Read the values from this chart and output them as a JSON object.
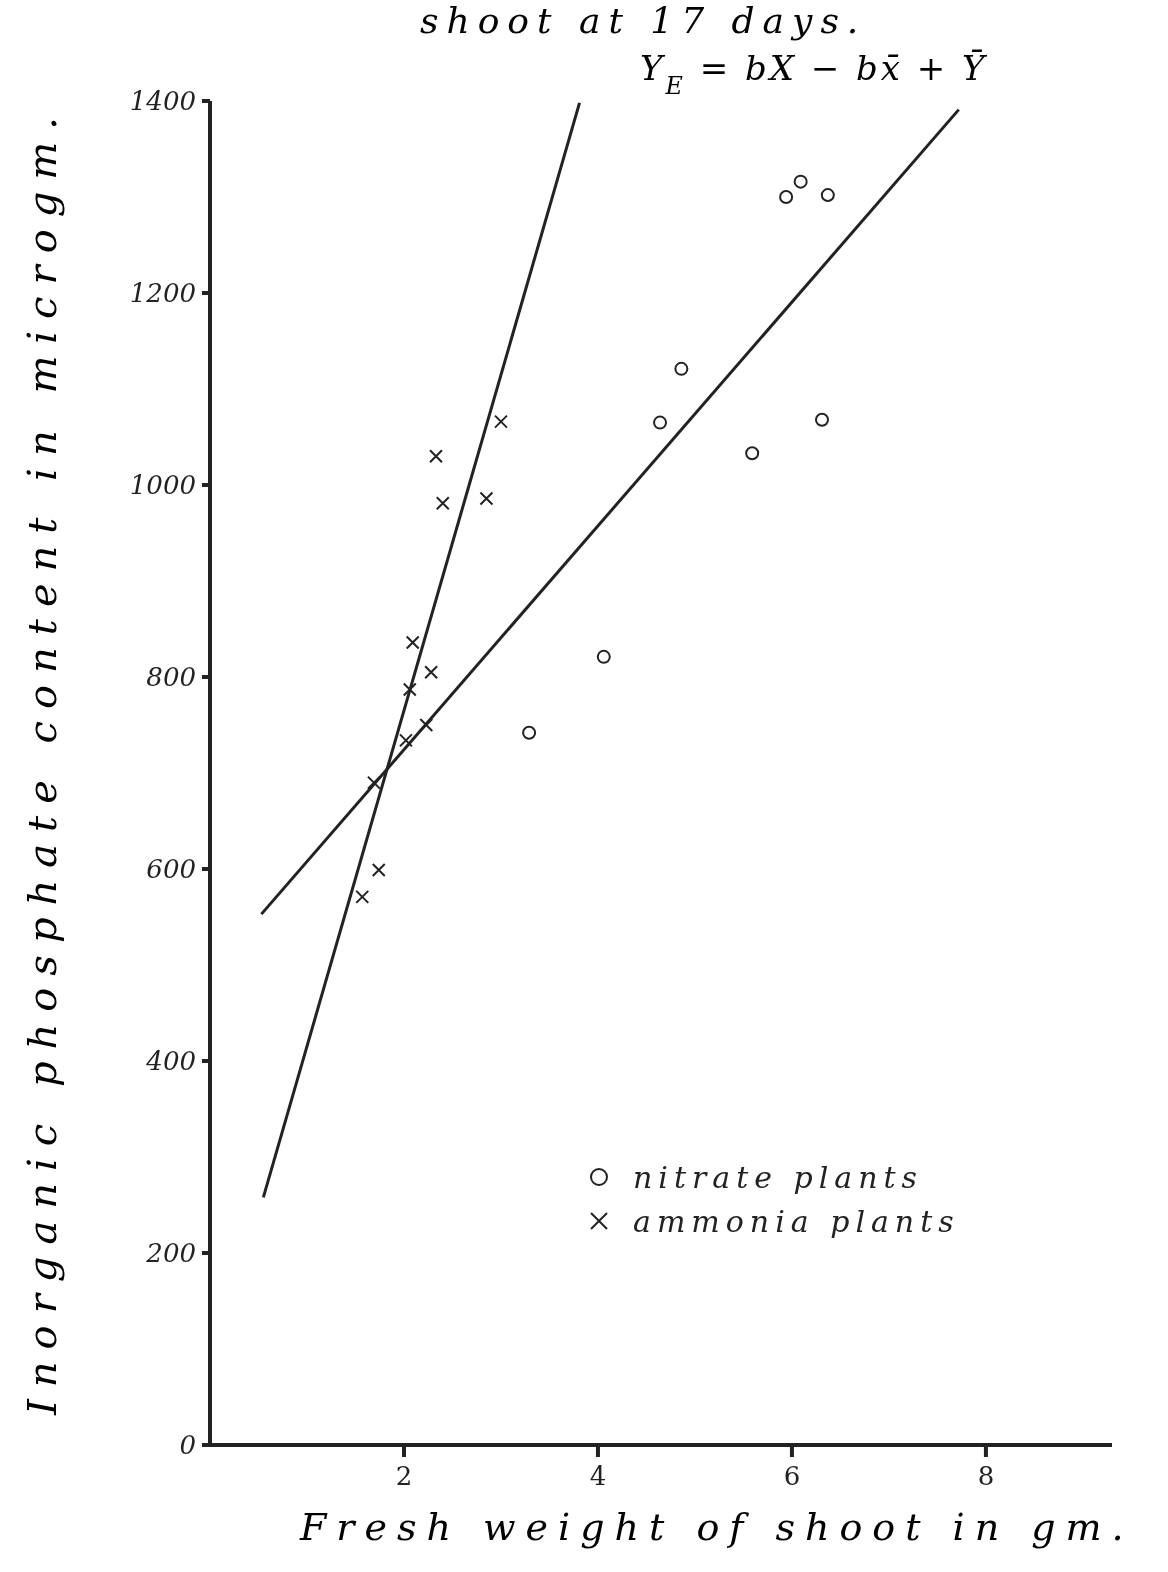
{
  "chart_data": {
    "type": "scatter",
    "title": "shoot at 17 days.",
    "subtitle": "Y$_{E}$ = bX − bx̄ + Ȳ",
    "xlabel": "Fresh weight of shoot in gm.",
    "ylabel": "Inorganic phosphate content in microgm.",
    "xlim": [
      0,
      9.3
    ],
    "xticks": [
      2,
      4,
      6,
      8
    ],
    "ylim": [
      0,
      1400
    ],
    "yticks": [
      0,
      200,
      400,
      600,
      800,
      1000,
      1200,
      1400
    ],
    "grid": false,
    "legend": "bottom right",
    "series": [
      {
        "name": "nitrate plants",
        "color": "#222222",
        "marker": "circle",
        "x": [
          3.29,
          4.06,
          4.64,
          4.86,
          5.59,
          5.94,
          6.09,
          6.37,
          6.31
        ],
        "values": [
          742,
          821,
          1065,
          1121,
          1033,
          1300,
          1316,
          1302,
          1068
        ]
      },
      {
        "name": "ammonia plants",
        "color": "#222222",
        "marker": "cross",
        "x": [
          1.57,
          1.74,
          1.69,
          2.02,
          2.23,
          2.06,
          2.28,
          2.09,
          2.4,
          2.33,
          2.85,
          3.0
        ],
        "values": [
          571,
          599,
          690,
          734,
          750,
          787,
          805,
          836,
          981,
          1030,
          986,
          1066
        ]
      },
      {
        "type": "line",
        "color": "#222222",
        "marker": "none",
        "x": [
          0.53,
          7.72
        ],
        "values": [
          553,
          1391
        ]
      },
      {
        "type": "line",
        "color": "#222222",
        "marker": "none",
        "x": [
          0.55,
          3.81
        ],
        "values": [
          258,
          1398
        ]
      }
    ]
  }
}
